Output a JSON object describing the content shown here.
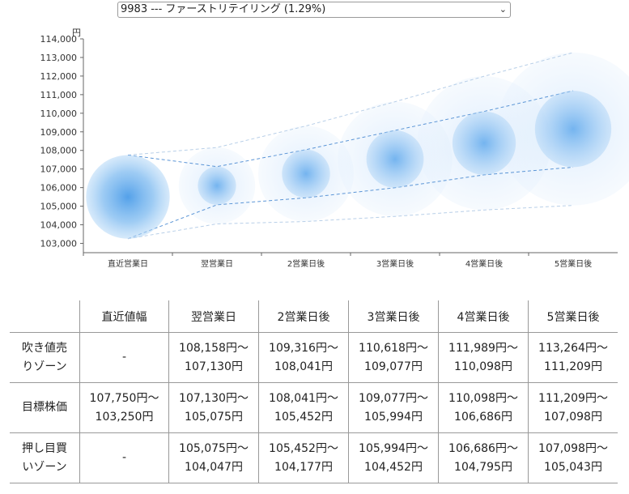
{
  "selector": {
    "value": "9983 --- ファーストリテイリング (1.29%)"
  },
  "chart_data": {
    "type": "bubble",
    "y_unit": "円",
    "y_ticks": [
      "103,000",
      "104,000",
      "105,000",
      "106,000",
      "107,000",
      "108,000",
      "109,000",
      "110,000",
      "111,000",
      "112,000",
      "113,000",
      "114,000"
    ],
    "ylim": [
      102500,
      114000
    ],
    "categories": [
      "直近営業日",
      "翌営業日",
      "2営業日後",
      "3営業日後",
      "4営業日後",
      "5営業日後"
    ],
    "bands": {
      "upper": [
        107750,
        108158,
        109316,
        110618,
        111989,
        113264
      ],
      "mid": [
        107750,
        107130,
        108041,
        109077,
        110098,
        111209
      ],
      "lower": [
        103250,
        105075,
        105452,
        105994,
        106686,
        107098
      ],
      "bottom": [
        103250,
        104047,
        104177,
        104452,
        104795,
        105043
      ]
    },
    "centers": [
      105500,
      106103,
      106747,
      107536,
      108392,
      109154
    ]
  },
  "table": {
    "header": [
      "",
      "直近値幅",
      "翌営業日",
      "2営業日後",
      "3営業日後",
      "4営業日後",
      "5営業日後"
    ],
    "rows": [
      {
        "label_line1": "吹き値売",
        "label_line2": "りゾーン",
        "cells": [
          {
            "a": "-",
            "b": ""
          },
          {
            "a": "108,158円〜",
            "b": "107,130円"
          },
          {
            "a": "109,316円〜",
            "b": "108,041円"
          },
          {
            "a": "110,618円〜",
            "b": "109,077円"
          },
          {
            "a": "111,989円〜",
            "b": "110,098円"
          },
          {
            "a": "113,264円〜",
            "b": "111,209円"
          }
        ]
      },
      {
        "label_line1": "目標株価",
        "label_line2": "",
        "cells": [
          {
            "a": "107,750円〜",
            "b": "103,250円"
          },
          {
            "a": "107,130円〜",
            "b": "105,075円"
          },
          {
            "a": "108,041円〜",
            "b": "105,452円"
          },
          {
            "a": "109,077円〜",
            "b": "105,994円"
          },
          {
            "a": "110,098円〜",
            "b": "106,686円"
          },
          {
            "a": "111,209円〜",
            "b": "107,098円"
          }
        ]
      },
      {
        "label_line1": "押し目買",
        "label_line2": "いゾーン",
        "cells": [
          {
            "a": "-",
            "b": ""
          },
          {
            "a": "105,075円〜",
            "b": "104,047円"
          },
          {
            "a": "105,452円〜",
            "b": "104,177円"
          },
          {
            "a": "105,994円〜",
            "b": "104,452円"
          },
          {
            "a": "106,686円〜",
            "b": "104,795円"
          },
          {
            "a": "107,098円〜",
            "b": "105,043円"
          }
        ]
      }
    ]
  }
}
